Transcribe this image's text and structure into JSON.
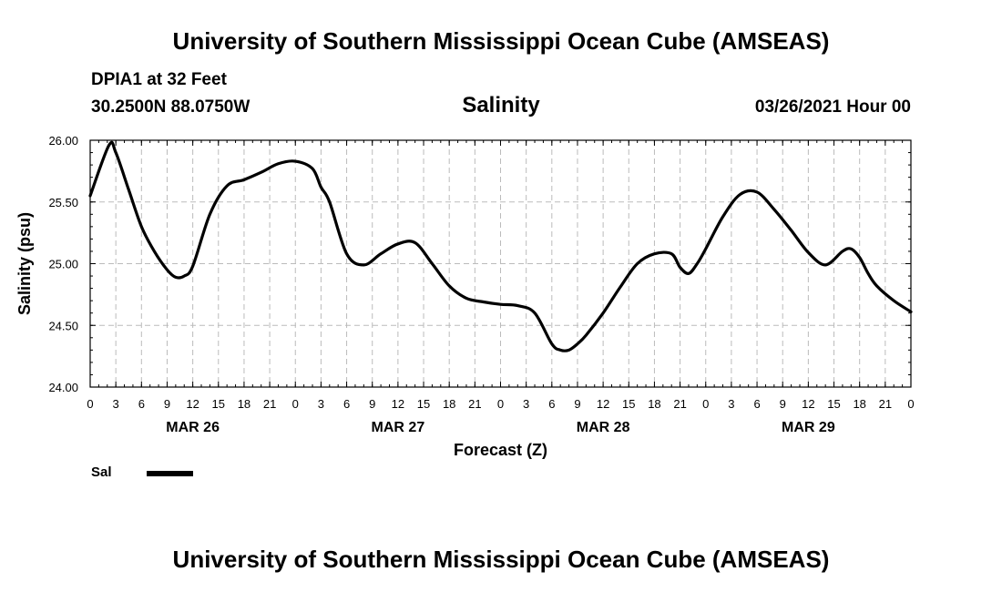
{
  "header": {
    "title": "University of Southern Mississippi Ocean Cube (AMSEAS)",
    "station": "DPIA1 at 32 Feet",
    "coords": "30.2500N  88.0750W",
    "variable": "Salinity",
    "datetime": "03/26/2021 Hour 00"
  },
  "footer": {
    "title": "University of Southern Mississippi Ocean Cube (AMSEAS)"
  },
  "legend": {
    "label": "Sal",
    "line_color": "#000000"
  },
  "chart_data": {
    "type": "line",
    "title": "Salinity",
    "xlabel": "Forecast (Z)",
    "ylabel": "Salinity (psu)",
    "xlim": [
      0,
      96
    ],
    "ylim": [
      24.0,
      26.0
    ],
    "y_ticks": [
      24.0,
      24.5,
      25.0,
      25.5,
      26.0
    ],
    "y_tick_labels": [
      "24.00",
      "24.50",
      "25.00",
      "25.50",
      "26.00"
    ],
    "x_tick_labels": [
      "0",
      "3",
      "6",
      "9",
      "12",
      "15",
      "18",
      "21",
      "0",
      "3",
      "6",
      "9",
      "12",
      "15",
      "18",
      "21",
      "0",
      "3",
      "6",
      "9",
      "12",
      "15",
      "18",
      "21",
      "0",
      "3",
      "6",
      "9",
      "12",
      "15",
      "18",
      "21",
      "0"
    ],
    "day_labels": [
      {
        "label": "MAR 26",
        "hour": 12
      },
      {
        "label": "MAR 27",
        "hour": 36
      },
      {
        "label": "MAR 28",
        "hour": 60
      },
      {
        "label": "MAR 29",
        "hour": 84
      }
    ],
    "grid": true,
    "series": [
      {
        "name": "Sal",
        "x": [
          0,
          2.2,
          3,
          4.5,
          6,
          7.5,
          9,
          10,
          11,
          12,
          14,
          16,
          18,
          20,
          22,
          24,
          26,
          27,
          28,
          30,
          32,
          34,
          36,
          38,
          40,
          42,
          44,
          46,
          48,
          50,
          52,
          54,
          55,
          56,
          57,
          58,
          60,
          62,
          64,
          66,
          68,
          69,
          70,
          71,
          72,
          74,
          76,
          78,
          80,
          82,
          84,
          86,
          88,
          89,
          90,
          91,
          92,
          94,
          96
        ],
        "values": [
          25.55,
          25.96,
          25.9,
          25.6,
          25.3,
          25.1,
          24.95,
          24.89,
          24.9,
          24.98,
          25.4,
          25.63,
          25.68,
          25.74,
          25.81,
          25.83,
          25.77,
          25.62,
          25.5,
          25.08,
          24.99,
          25.08,
          25.16,
          25.17,
          25.0,
          24.82,
          24.72,
          24.69,
          24.67,
          24.66,
          24.6,
          24.35,
          24.3,
          24.3,
          24.35,
          24.42,
          24.6,
          24.81,
          25.0,
          25.08,
          25.08,
          24.97,
          24.92,
          25.0,
          25.12,
          25.38,
          25.56,
          25.58,
          25.44,
          25.27,
          25.09,
          24.99,
          25.1,
          25.12,
          25.05,
          24.92,
          24.82,
          24.7,
          24.61
        ]
      }
    ]
  }
}
